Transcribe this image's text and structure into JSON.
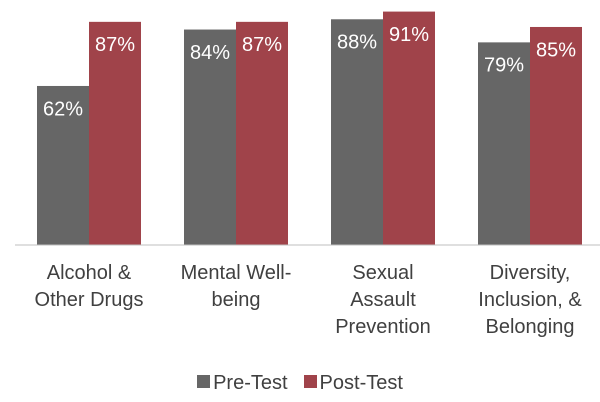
{
  "chart_data": {
    "type": "bar",
    "categories": [
      "Alcohol & Other Drugs",
      "Mental Well-being",
      "Sexual Assault Prevention",
      "Diversity, Inclusion, & Belonging"
    ],
    "series": [
      {
        "name": "Pre-Test",
        "color": "#666666",
        "values": [
          62,
          84,
          88,
          79
        ],
        "value_labels": [
          "62%",
          "84%",
          "88%",
          "79%"
        ]
      },
      {
        "name": "Post-Test",
        "color": "#a0434a",
        "values": [
          87,
          87,
          91,
          85
        ],
        "value_labels": [
          "87%",
          "87%",
          "91%",
          "85%"
        ]
      }
    ],
    "legend": "bottom"
  }
}
